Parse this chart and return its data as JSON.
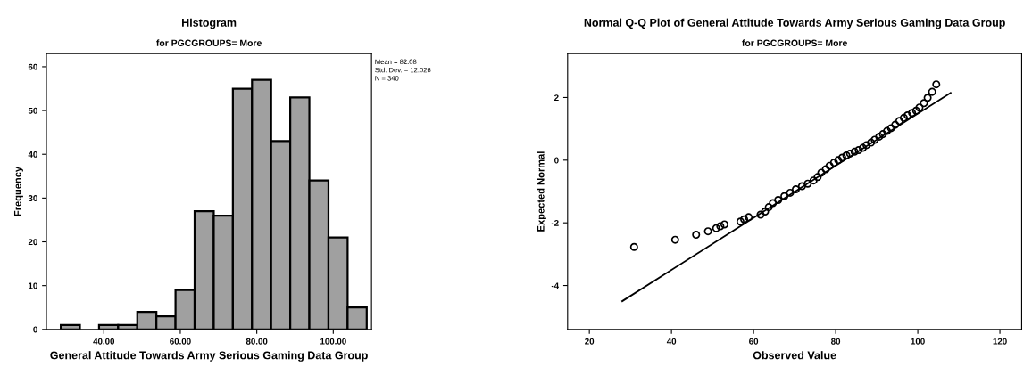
{
  "chart_data": [
    {
      "type": "histogram",
      "title": "Histogram",
      "subtitle": "for PGCGROUPS= More",
      "xlabel": "General Attitude Towards Army Serious Gaming Data Group",
      "ylabel": "Frequency",
      "bins": [
        28.75,
        33.75,
        38.75,
        43.75,
        48.75,
        53.75,
        58.75,
        63.75,
        68.75,
        73.75,
        78.75,
        83.75,
        88.75,
        93.75,
        98.75,
        103.75,
        108.75
      ],
      "values": [
        1,
        0,
        1,
        1,
        4,
        3,
        9,
        27,
        26,
        55,
        57,
        43,
        53,
        34,
        21,
        5
      ],
      "color": "#a0a0a0",
      "xlim": [
        25,
        110
      ],
      "xticks": [
        {
          "value": 40,
          "label": "40.00"
        },
        {
          "value": 60,
          "label": "60.00"
        },
        {
          "value": 80,
          "label": "80.00"
        },
        {
          "value": 100,
          "label": "100.00"
        }
      ],
      "ylim": [
        0,
        63
      ],
      "yticks": [
        0,
        10,
        20,
        30,
        40,
        50,
        60
      ],
      "annotations": [
        "Mean = 82.08",
        "Std. Dev. = 12.026",
        "N = 340"
      ]
    },
    {
      "type": "scatter",
      "title": "Normal Q-Q Plot of General Attitude Towards Army Serious Gaming Data Group",
      "subtitle": "for PGCGROUPS= More",
      "xlabel": "Observed Value",
      "ylabel": "Expected Normal",
      "series": [
        {
          "type": "scatter",
          "color": "#000000",
          "marker": "circle",
          "x": [
            30.9,
            40.9,
            46,
            48.9,
            50.9,
            51.9,
            52.9,
            56.8,
            57.7,
            58.8,
            61.7,
            62.8,
            63.7,
            64.7,
            66,
            67.5,
            68.9,
            70.3,
            71.8,
            73.2,
            74.6,
            75.6,
            76.5,
            77.6,
            78.5,
            79.6,
            80.6,
            81.6,
            82.6,
            83.5,
            84.6,
            85.6,
            86.6,
            87.5,
            88.6,
            89.5,
            90.6,
            91.5,
            92.5,
            93.5,
            94.5,
            95.5,
            96.6,
            97.5,
            98.6,
            99.6,
            100.4,
            101.5,
            102.4,
            103.5,
            104.5
          ],
          "values": [
            -2.77,
            -2.54,
            -2.38,
            -2.27,
            -2.17,
            -2.11,
            -2.05,
            -1.96,
            -1.89,
            -1.82,
            -1.74,
            -1.64,
            -1.5,
            -1.37,
            -1.27,
            -1.15,
            -1.04,
            -0.93,
            -0.83,
            -0.75,
            -0.65,
            -0.54,
            -0.4,
            -0.29,
            -0.18,
            -0.08,
            0,
            0.08,
            0.15,
            0.21,
            0.27,
            0.32,
            0.39,
            0.48,
            0.56,
            0.65,
            0.75,
            0.83,
            0.93,
            1.02,
            1.13,
            1.25,
            1.35,
            1.43,
            1.51,
            1.58,
            1.68,
            1.82,
            1.99,
            2.18,
            2.42
          ]
        },
        {
          "type": "line",
          "color": "#000000",
          "line_style": "solid",
          "x": [
            28,
            108
          ],
          "values": [
            -4.5,
            2.15
          ]
        }
      ],
      "xlim": [
        14.7,
        125.3
      ],
      "xticks": [
        20,
        40,
        60,
        80,
        100,
        120
      ],
      "ylim": [
        -5.4,
        3.4
      ],
      "yticks": [
        -4,
        -2,
        0,
        2
      ]
    }
  ]
}
